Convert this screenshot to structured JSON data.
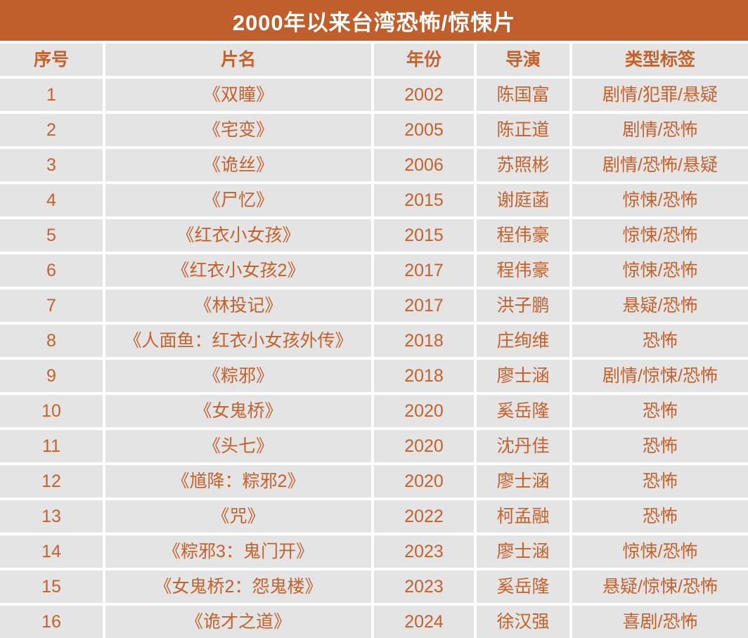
{
  "page": {
    "title": "2000年以来台湾恐怖/惊悚片"
  },
  "colors": {
    "accent_orange": "#C15F2C",
    "text_orange": "#C2622D",
    "cell_background_gray": "#E4E4E4",
    "divider_white": "#FFFFFF",
    "title_text_white": "#FFFFFF"
  },
  "chart_data": {
    "type": "table",
    "title": "2000年以来台湾恐怖/惊悚片",
    "columns": [
      "序号",
      "片名",
      "年份",
      "导演",
      "类型标签"
    ],
    "rows": [
      [
        "1",
        "《双瞳》",
        "2002",
        "陈国富",
        "剧情/犯罪/悬疑"
      ],
      [
        "2",
        "《宅变》",
        "2005",
        "陈正道",
        "剧情/恐怖"
      ],
      [
        "3",
        "《诡丝》",
        "2006",
        "苏照彬",
        "剧情/恐怖/悬疑"
      ],
      [
        "4",
        "《尸忆》",
        "2015",
        "谢庭菡",
        "惊悚/恐怖"
      ],
      [
        "5",
        "《红衣小女孩》",
        "2015",
        "程伟豪",
        "惊悚/恐怖"
      ],
      [
        "6",
        "《红衣小女孩2》",
        "2017",
        "程伟豪",
        "惊悚/恐怖"
      ],
      [
        "7",
        "《林投记》",
        "2017",
        "洪子鹏",
        "悬疑/恐怖"
      ],
      [
        "8",
        "《人面鱼：红衣小女孩外传》",
        "2018",
        "庄绚维",
        "恐怖"
      ],
      [
        "9",
        "《粽邪》",
        "2018",
        "廖士涵",
        "剧情/惊悚/恐怖"
      ],
      [
        "10",
        "《女鬼桥》",
        "2020",
        "奚岳隆",
        "恐怖"
      ],
      [
        "11",
        "《头七》",
        "2020",
        "沈丹佳",
        "恐怖"
      ],
      [
        "12",
        "《馗降：粽邪2》",
        "2020",
        "廖士涵",
        "恐怖"
      ],
      [
        "13",
        "《咒》",
        "2022",
        "柯孟融",
        "恐怖"
      ],
      [
        "14",
        "《粽邪3：鬼门开》",
        "2023",
        "廖士涵",
        "惊悚/恐怖"
      ],
      [
        "15",
        "《女鬼桥2：怨鬼楼》",
        "2023",
        "奚岳隆",
        "悬疑/惊悚/恐怖"
      ],
      [
        "16",
        "《诡才之道》",
        "2024",
        "徐汉强",
        "喜剧/恐怖"
      ]
    ]
  }
}
